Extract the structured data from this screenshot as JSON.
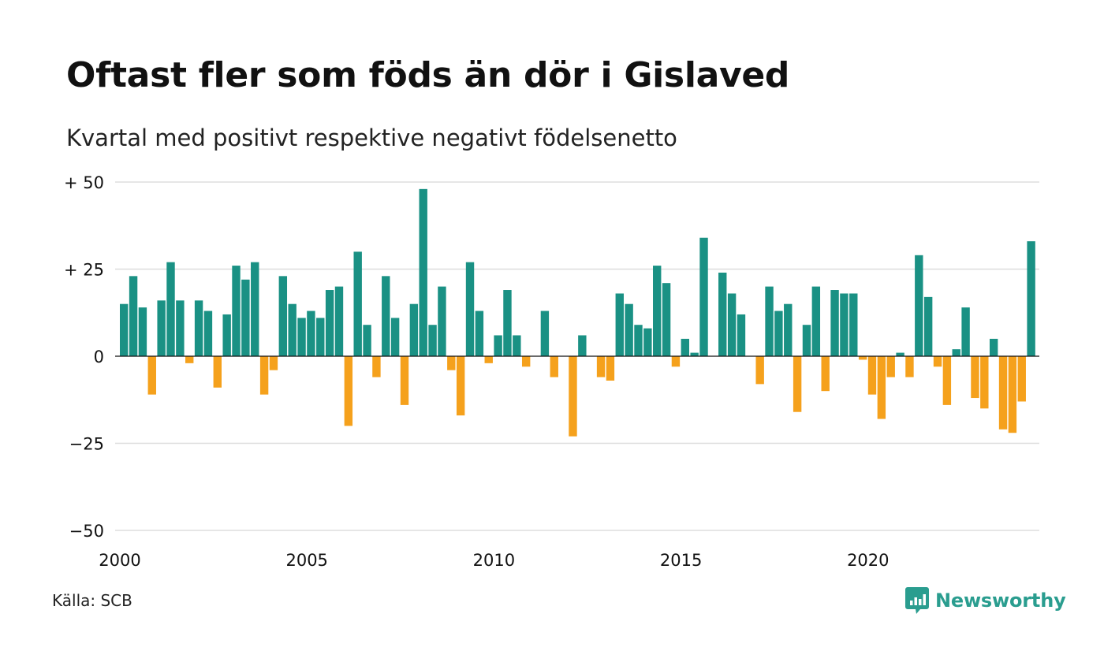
{
  "title": "Oftast fler som föds än dör i Gislaved",
  "subtitle": "Kvartal med positivt respektive negativt födelsenetto",
  "source": "Källa: SCB",
  "brand": {
    "name": "Newsworthy",
    "color": "#2a9d8f"
  },
  "chart_data": {
    "type": "bar",
    "title": "Oftast fler som föds än dör i Gislaved",
    "subtitle": "Kvartal med positivt respektive negativt födelsenetto",
    "ylim": [
      -50,
      50
    ],
    "y_ticks": [
      {
        "value": 50,
        "label": "+ 50"
      },
      {
        "value": 25,
        "label": "+ 25"
      },
      {
        "value": 0,
        "label": "0"
      },
      {
        "value": -25,
        "label": "−25"
      },
      {
        "value": -50,
        "label": "−50"
      }
    ],
    "x_ticks": [
      {
        "year": 2000,
        "label": "2000"
      },
      {
        "year": 2005,
        "label": "2005"
      },
      {
        "year": 2010,
        "label": "2010"
      },
      {
        "year": 2015,
        "label": "2015"
      },
      {
        "year": 2020,
        "label": "2020"
      }
    ],
    "start": "2000 Q1",
    "grid": true,
    "colors": {
      "positive": "#1a9184",
      "negative": "#f5a11c"
    },
    "values": [
      15,
      23,
      14,
      -11,
      16,
      27,
      16,
      -2,
      16,
      13,
      -9,
      12,
      26,
      22,
      27,
      -11,
      -4,
      23,
      15,
      11,
      13,
      11,
      19,
      20,
      -20,
      30,
      9,
      -6,
      23,
      11,
      -14,
      15,
      48,
      9,
      20,
      -4,
      -17,
      27,
      13,
      -2,
      6,
      19,
      6,
      -3,
      0,
      13,
      -6,
      0,
      -23,
      6,
      0,
      -6,
      -7,
      18,
      15,
      9,
      8,
      26,
      21,
      -3,
      5,
      1,
      34,
      0,
      24,
      18,
      12,
      0,
      -8,
      20,
      13,
      15,
      -16,
      9,
      20,
      -10,
      19,
      18,
      18,
      -1,
      -11,
      -18,
      -6,
      1,
      -6,
      29,
      17,
      -3,
      -14,
      2,
      14,
      -12,
      -15,
      5,
      -21,
      -22,
      -13,
      33
    ]
  }
}
